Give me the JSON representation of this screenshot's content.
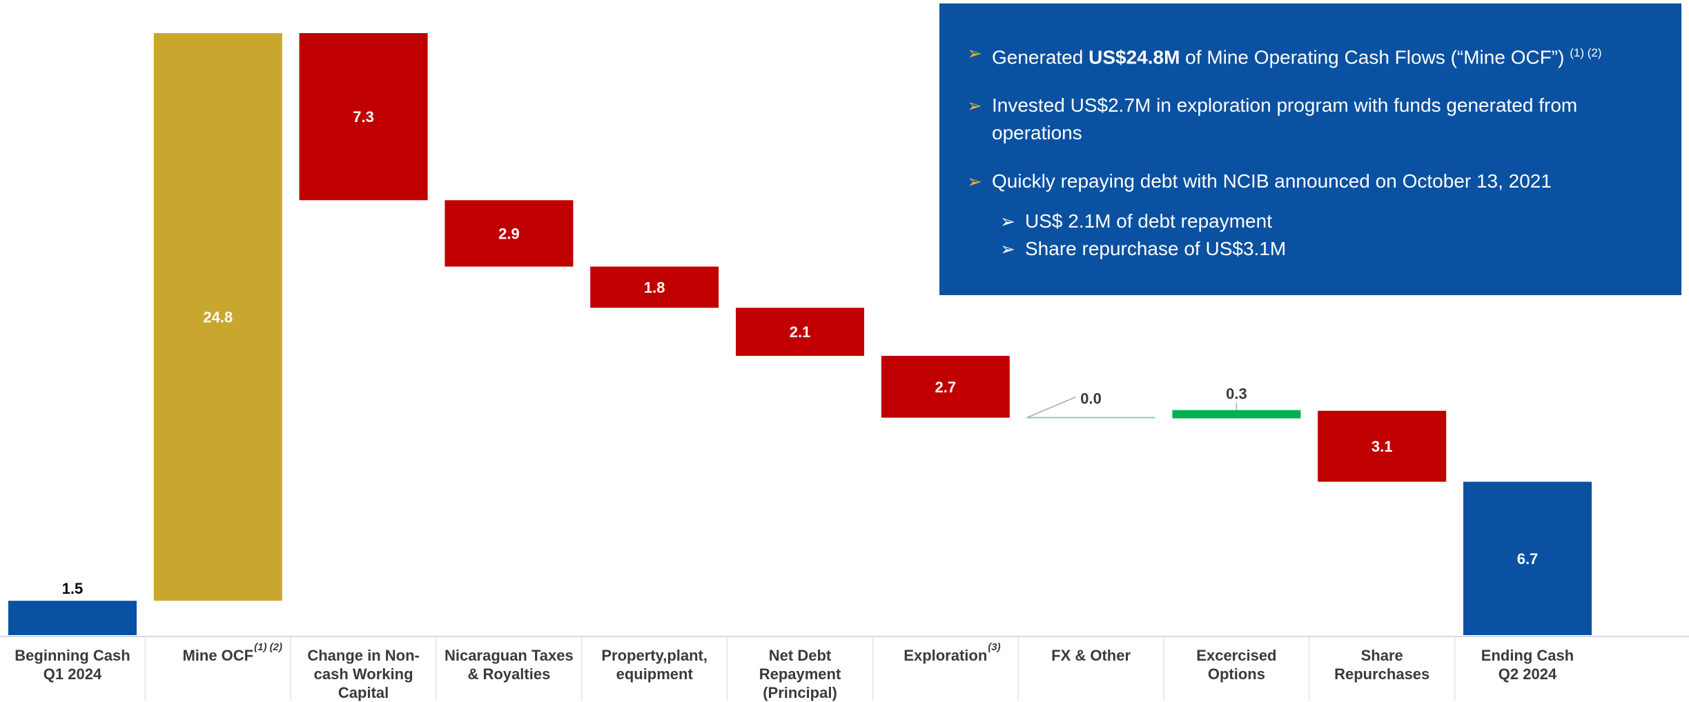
{
  "chart_data": {
    "type": "waterfall",
    "categories": [
      {
        "lines": [
          "Beginning Cash",
          "Q1 2024"
        ],
        "sup": ""
      },
      {
        "lines": [
          "Mine OCF"
        ],
        "sup": "(1) (2)"
      },
      {
        "lines": [
          "Change in Non-",
          "cash Working",
          "Capital"
        ],
        "sup": ""
      },
      {
        "lines": [
          "Nicaraguan Taxes",
          "& Royalties"
        ],
        "sup": ""
      },
      {
        "lines": [
          "Property,plant,",
          "equipment"
        ],
        "sup": ""
      },
      {
        "lines": [
          "Net Debt",
          "Repayment",
          "(Principal)"
        ],
        "sup": ""
      },
      {
        "lines": [
          "Exploration"
        ],
        "sup": "(3)"
      },
      {
        "lines": [
          "FX & Other"
        ],
        "sup": ""
      },
      {
        "lines": [
          "Excercised",
          "Options"
        ],
        "sup": ""
      },
      {
        "lines": [
          "Share",
          "Repurchases"
        ],
        "sup": ""
      },
      {
        "lines": [
          "Ending Cash",
          "Q2 2024"
        ],
        "sup": ""
      }
    ],
    "steps": [
      {
        "value": 1.5,
        "label": "1.5",
        "kind": "total"
      },
      {
        "value": 24.8,
        "label": "24.8",
        "kind": "increase"
      },
      {
        "value": -7.3,
        "label": "7.3",
        "kind": "decrease"
      },
      {
        "value": -2.9,
        "label": "2.9",
        "kind": "decrease"
      },
      {
        "value": -1.8,
        "label": "1.8",
        "kind": "decrease"
      },
      {
        "value": -2.1,
        "label": "2.1",
        "kind": "decrease"
      },
      {
        "value": -2.7,
        "label": "2.7",
        "kind": "decrease"
      },
      {
        "value": 0.0,
        "label": "0.0",
        "kind": "other"
      },
      {
        "value": 0.3,
        "label": "0.3",
        "kind": "options"
      },
      {
        "value": -3.1,
        "label": "3.1",
        "kind": "decrease"
      },
      {
        "value": 6.7,
        "label": "6.7",
        "kind": "total"
      }
    ],
    "colors": {
      "total": "#0a51a1",
      "increase": "#c9a72f",
      "decrease": "#c00000",
      "options": "#00b050",
      "other": "#7fd3a8"
    },
    "ylim": [
      0,
      26.3
    ],
    "grid": false,
    "legend": "none"
  },
  "info_box": {
    "background": "#0a51a1",
    "arrow_color": "#e0b43a",
    "bullets": [
      {
        "pre": "Generated ",
        "bold": "US$24.8M",
        "post": " of Mine Operating Cash Flows (“Mine OCF”)",
        "sup": "(1) (2)"
      },
      {
        "text": "Invested US$2.7M in exploration program with funds generated from operations"
      },
      {
        "text": "Quickly repaying debt with NCIB announced on October 13, 2021"
      }
    ],
    "sub_bullets": [
      "US$ 2.1M of debt repayment",
      "Share repurchase of US$3.1M"
    ]
  }
}
